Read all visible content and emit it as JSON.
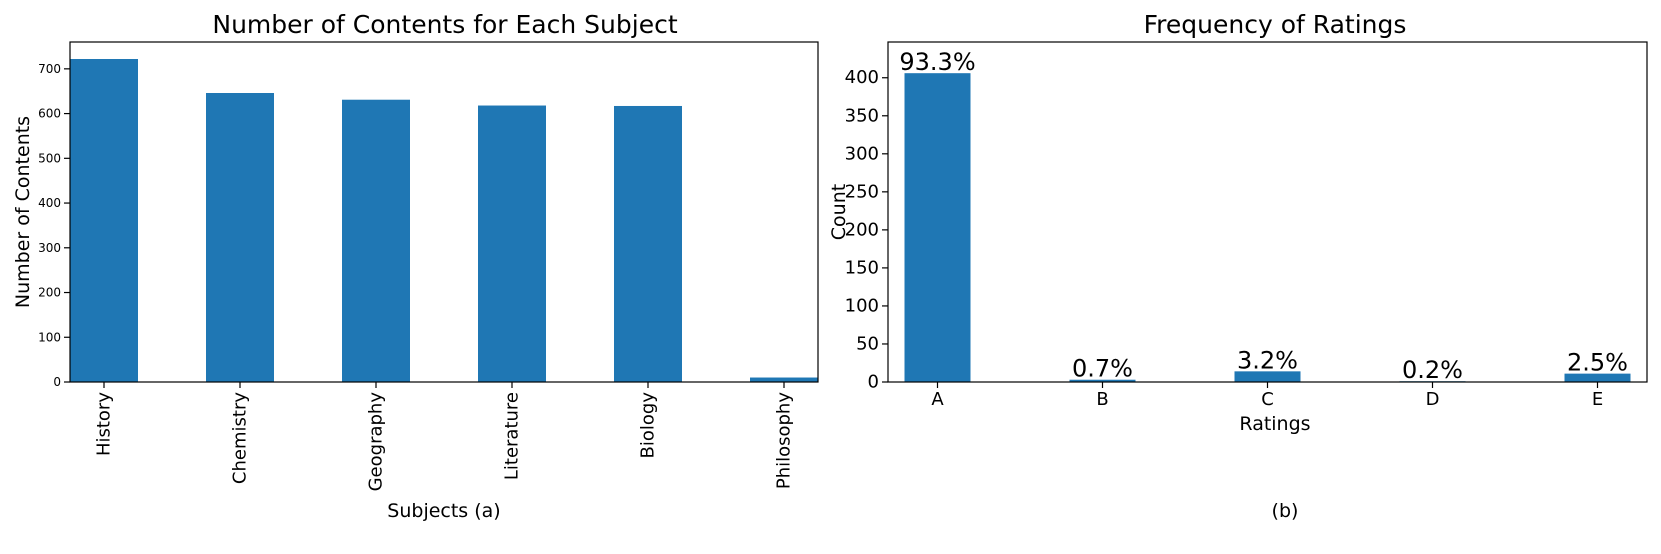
{
  "colors": {
    "bar": "#1f77b4",
    "axis": "#000000",
    "background": "#ffffff"
  },
  "chart_data": [
    {
      "type": "bar",
      "title": "Number of Contents for Each Subject",
      "xlabel": "Subjects (a)",
      "ylabel": "Number of Contents",
      "categories": [
        "History",
        "Chemistry",
        "Geography",
        "Literature",
        "Biology",
        "Philosophy"
      ],
      "values": [
        722,
        646,
        631,
        618,
        617,
        10
      ],
      "ylim": [
        0,
        760
      ],
      "yticks": [
        0,
        100,
        200,
        300,
        400,
        500,
        600,
        700
      ],
      "grid": false,
      "x_tick_rotation": "vertical"
    },
    {
      "type": "bar",
      "title": "Frequency of Ratings",
      "xlabel": "Ratings",
      "ylabel": "Count",
      "caption": "(b)",
      "categories": [
        "A",
        "B",
        "C",
        "D",
        "E"
      ],
      "values": [
        406,
        3,
        14,
        1,
        11
      ],
      "data_labels": [
        "93.3%",
        "0.7%",
        "3.2%",
        "0.2%",
        "2.5%"
      ],
      "ylim": [
        0,
        447
      ],
      "yticks": [
        0,
        50,
        100,
        150,
        200,
        250,
        300,
        350,
        400
      ],
      "grid": false
    }
  ]
}
